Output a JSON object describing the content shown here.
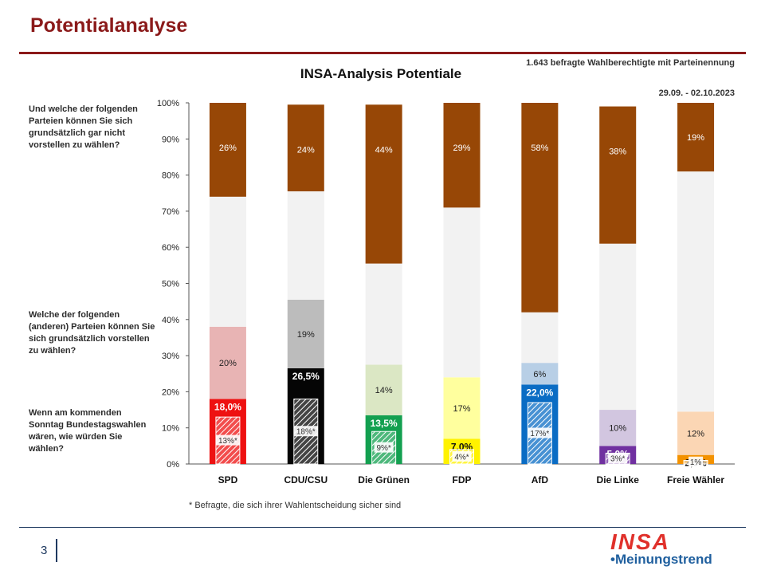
{
  "page_title": "Potentialanalyse",
  "page_number": "3",
  "logo": {
    "brand": "INSA",
    "sub": "•Meinungstrend"
  },
  "questions": [
    "Und welche der folgenden Parteien können Sie sich grundsätzlich gar nicht vorstellen zu wählen?",
    "Welche der folgenden (anderen) Parteien können Sie sich grundsätzlich vorstellen zu wählen?",
    "Wenn am kommenden Sonntag Bundestagswahlen wären, wie würden Sie wählen?"
  ],
  "chart_data": {
    "type": "bar",
    "stacked": true,
    "title": "INSA-Analysis Potentiale",
    "sample_note": "1.643 befragte Wahlberechtigte mit Parteinennung",
    "date_range": "29.09. - 02.10.2023",
    "footnote": "* Befragte, die sich ihrer Wahlentscheidung sicher sind",
    "ylim": [
      0,
      100
    ],
    "y_ticks": [
      "0%",
      "10%",
      "20%",
      "30%",
      "40%",
      "50%",
      "60%",
      "70%",
      "80%",
      "90%",
      "100%"
    ],
    "grid": false,
    "categories": [
      "SPD",
      "CDU/CSU",
      "Die Grünen",
      "FDP",
      "AfD",
      "Die Linke",
      "Freie Wähler"
    ],
    "series": [
      {
        "values": [
          18.0,
          26.5,
          13.5,
          7.0,
          22.0,
          5.0,
          2.5
        ],
        "labels": [
          "18,0%",
          "26,5%",
          "13,5%",
          "7,0%",
          "22,0%",
          "5,0%",
          "2,5%"
        ]
      },
      {
        "values": [
          20,
          19,
          14,
          17,
          6,
          10,
          12
        ],
        "labels": [
          "20%",
          "19%",
          "14%",
          "17%",
          "6%",
          "10%",
          "12%"
        ]
      },
      {
        "values": [
          36,
          30,
          28,
          47,
          14,
          46,
          66.5
        ],
        "labels": [
          "",
          "",
          "",
          "",
          "",
          "",
          ""
        ]
      },
      {
        "values": [
          26,
          24,
          44,
          29,
          58,
          38,
          19
        ],
        "labels": [
          "26%",
          "24%",
          "44%",
          "29%",
          "58%",
          "38%",
          "19%"
        ]
      }
    ],
    "sure_voters": {
      "values": [
        13,
        18,
        9,
        4,
        17,
        3,
        1
      ],
      "labels": [
        "13%*",
        "18%*",
        "9%*",
        "4%*",
        "17%*",
        "3%*",
        "1%"
      ]
    },
    "colors": {
      "party_strong": [
        "#ee1111",
        "#050505",
        "#13a050",
        "#fff200",
        "#0a6cc4",
        "#7030a0",
        "#f39200"
      ],
      "party_light": [
        "#e8b4b4",
        "#bcbcbc",
        "#dbe7c4",
        "#ffff9e",
        "#b8cfe6",
        "#d2c6e0",
        "#fbd6b4"
      ],
      "undecided": "#f2f2f2",
      "rejection": "#974706",
      "title_red": "#8b1a1a"
    }
  }
}
